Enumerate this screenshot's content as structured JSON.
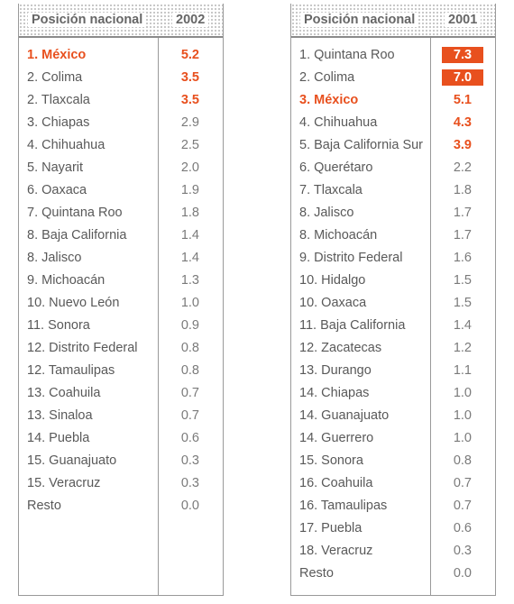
{
  "chart_data": [
    {
      "type": "table",
      "header_label": "Posición nacional",
      "year": "2002",
      "rows": [
        {
          "name": "1. México",
          "value": "5.2",
          "style": "highlight"
        },
        {
          "name": "2. Colima",
          "value": "3.5",
          "style": "bold"
        },
        {
          "name": "2. Tlaxcala",
          "value": "3.5",
          "style": "bold"
        },
        {
          "name": "3. Chiapas",
          "value": "2.9",
          "style": "normal"
        },
        {
          "name": "4. Chihuahua",
          "value": "2.5",
          "style": "normal"
        },
        {
          "name": "5. Nayarit",
          "value": "2.0",
          "style": "normal"
        },
        {
          "name": "6. Oaxaca",
          "value": "1.9",
          "style": "normal"
        },
        {
          "name": "7. Quintana Roo",
          "value": "1.8",
          "style": "normal"
        },
        {
          "name": "8. Baja California",
          "value": "1.4",
          "style": "normal"
        },
        {
          "name": "8. Jalisco",
          "value": "1.4",
          "style": "normal"
        },
        {
          "name": "9. Michoacán",
          "value": "1.3",
          "style": "normal"
        },
        {
          "name": "10. Nuevo León",
          "value": "1.0",
          "style": "normal"
        },
        {
          "name": "11. Sonora",
          "value": "0.9",
          "style": "normal"
        },
        {
          "name": "12. Distrito Federal",
          "value": "0.8",
          "style": "normal"
        },
        {
          "name": "12. Tamaulipas",
          "value": "0.8",
          "style": "normal"
        },
        {
          "name": "13. Coahuila",
          "value": "0.7",
          "style": "normal"
        },
        {
          "name": "13. Sinaloa",
          "value": "0.7",
          "style": "normal"
        },
        {
          "name": "14. Puebla",
          "value": "0.6",
          "style": "normal"
        },
        {
          "name": "15. Guanajuato",
          "value": "0.3",
          "style": "normal"
        },
        {
          "name": "15. Veracruz",
          "value": "0.3",
          "style": "normal"
        },
        {
          "name": "Resto",
          "value": "0.0",
          "style": "normal"
        }
      ]
    },
    {
      "type": "table",
      "header_label": "Posición nacional",
      "year": "2001",
      "rows": [
        {
          "name": "1. Quintana Roo",
          "value": "7.3",
          "style": "top"
        },
        {
          "name": "2. Colima",
          "value": "7.0",
          "style": "top"
        },
        {
          "name": "3. México",
          "value": "5.1",
          "style": "highlight"
        },
        {
          "name": "4. Chihuahua",
          "value": "4.3",
          "style": "bold"
        },
        {
          "name": "5. Baja California Sur",
          "value": "3.9",
          "style": "bold"
        },
        {
          "name": "6. Querétaro",
          "value": "2.2",
          "style": "normal"
        },
        {
          "name": "7. Tlaxcala",
          "value": "1.8",
          "style": "normal"
        },
        {
          "name": "8. Jalisco",
          "value": "1.7",
          "style": "normal"
        },
        {
          "name": "8. Michoacán",
          "value": "1.7",
          "style": "normal"
        },
        {
          "name": "9. Distrito Federal",
          "value": "1.6",
          "style": "normal"
        },
        {
          "name": "10. Hidalgo",
          "value": "1.5",
          "style": "normal"
        },
        {
          "name": "10. Oaxaca",
          "value": "1.5",
          "style": "normal"
        },
        {
          "name": "11. Baja California",
          "value": "1.4",
          "style": "normal"
        },
        {
          "name": "12. Zacatecas",
          "value": "1.2",
          "style": "normal"
        },
        {
          "name": "13. Durango",
          "value": "1.1",
          "style": "normal"
        },
        {
          "name": "14. Chiapas",
          "value": "1.0",
          "style": "normal"
        },
        {
          "name": "14. Guanajuato",
          "value": "1.0",
          "style": "normal"
        },
        {
          "name": "14. Guerrero",
          "value": "1.0",
          "style": "normal"
        },
        {
          "name": "15. Sonora",
          "value": "0.8",
          "style": "normal"
        },
        {
          "name": "16. Coahuila",
          "value": "0.7",
          "style": "normal"
        },
        {
          "name": "16. Tamaulipas",
          "value": "0.7",
          "style": "normal"
        },
        {
          "name": "17. Puebla",
          "value": "0.6",
          "style": "normal"
        },
        {
          "name": "18. Veracruz",
          "value": "0.3",
          "style": "normal"
        },
        {
          "name": "Resto",
          "value": "0.0",
          "style": "normal"
        }
      ]
    }
  ],
  "colors": {
    "accent": "#e8501e",
    "text": "#595959",
    "value_text": "#7a7a7a",
    "rule": "#9a9a9a"
  }
}
